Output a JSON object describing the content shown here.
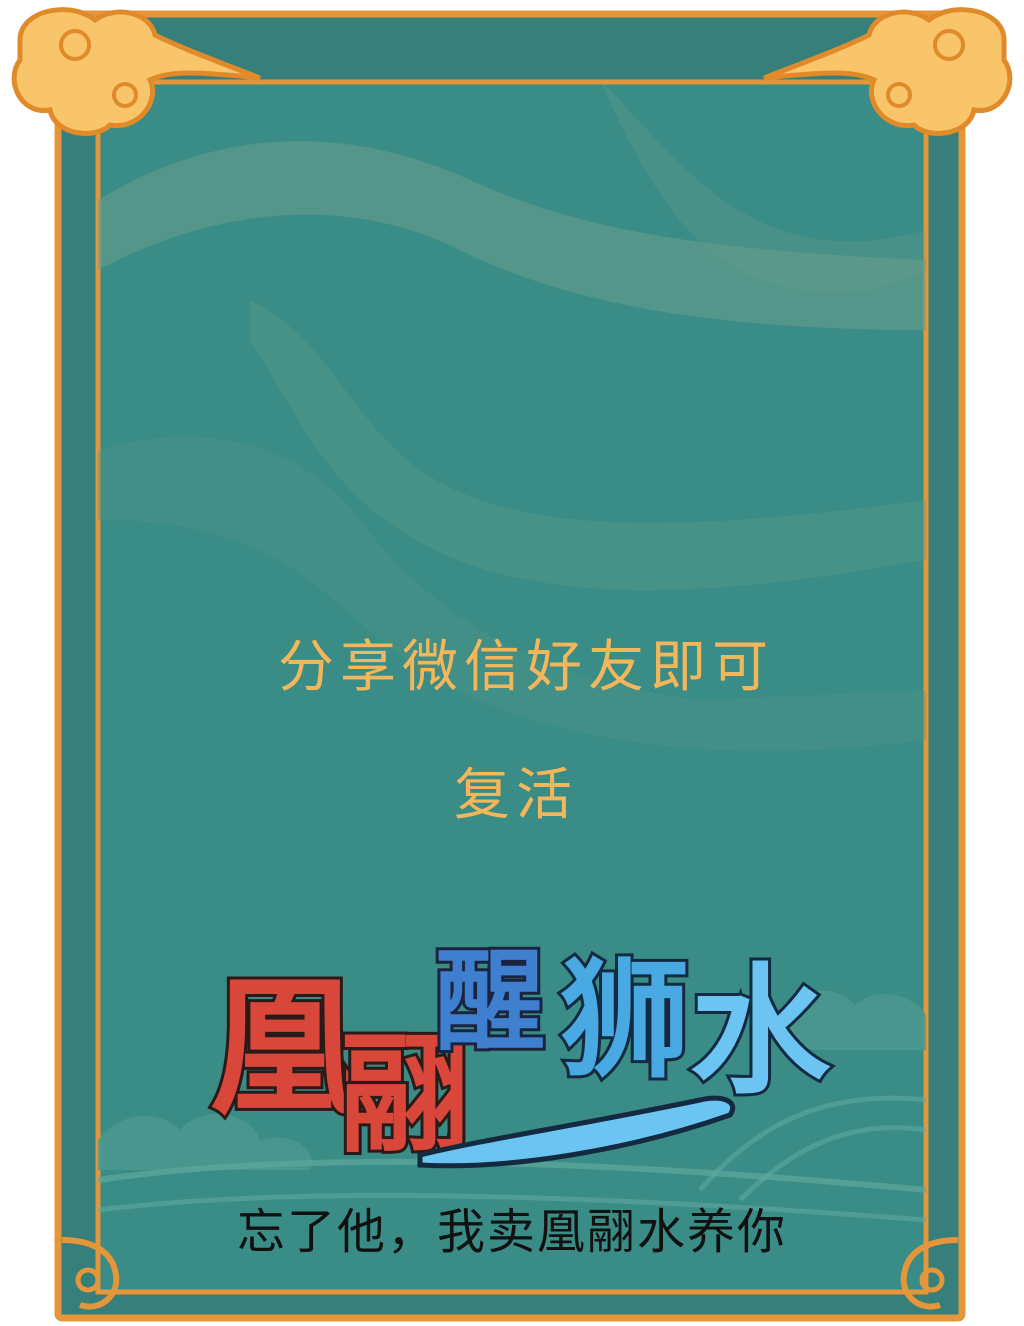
{
  "dialog": {
    "message_line1": "分享微信好友即可",
    "message_line2": "复活"
  },
  "logo": {
    "title": "凰翮醒狮水"
  },
  "slogan": "忘了他，我卖凰翮水养你",
  "colors": {
    "panel": "#3a8c86",
    "frame": "#e5963a",
    "cloud": "#f9c56a",
    "message": "#f4b65a",
    "logo_red": "#d9473a",
    "logo_blue": "#49a9e2"
  }
}
